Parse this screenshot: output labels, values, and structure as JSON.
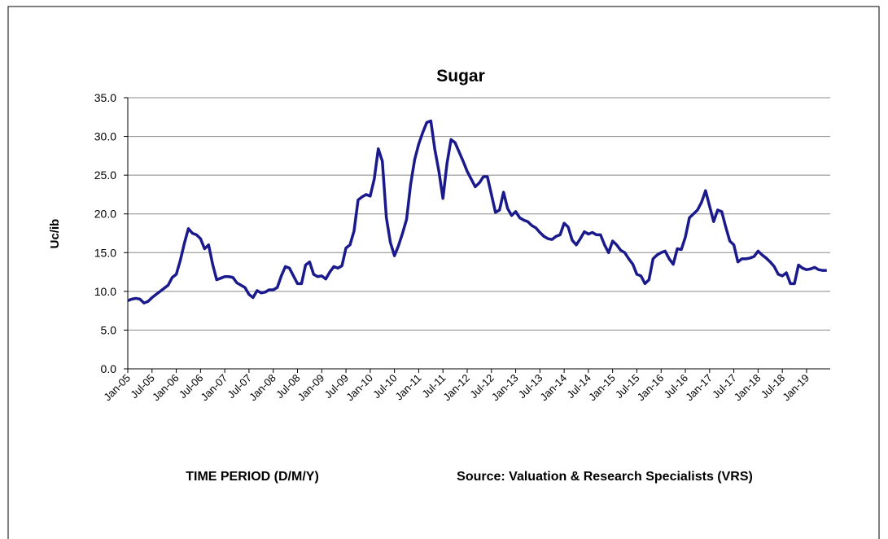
{
  "chart_data": {
    "type": "line",
    "title": "Sugar",
    "y_label": "Uc/ib",
    "x_label": "TIME PERIOD (D/M/Y)",
    "source": "Source: Valuation & Research Specialists (VRS)",
    "categories": [
      "Jan-05",
      null,
      null,
      null,
      null,
      null,
      "Jul-05",
      null,
      null,
      null,
      null,
      null,
      "Jan-06",
      null,
      null,
      null,
      null,
      null,
      "Jul-06",
      null,
      null,
      null,
      null,
      null,
      "Jan-07",
      null,
      null,
      null,
      null,
      null,
      "Jul-07",
      null,
      null,
      null,
      null,
      null,
      "Jan-08",
      null,
      null,
      null,
      null,
      null,
      "Jul-08",
      null,
      null,
      null,
      null,
      null,
      "Jan-09",
      null,
      null,
      null,
      null,
      null,
      "Jul-09",
      null,
      null,
      null,
      null,
      null,
      "Jan-10",
      null,
      null,
      null,
      null,
      null,
      "Jul-10",
      null,
      null,
      null,
      null,
      null,
      "Jan-11",
      null,
      null,
      null,
      null,
      null,
      "Jul-11",
      null,
      null,
      null,
      null,
      null,
      "Jan-12",
      null,
      null,
      null,
      null,
      null,
      "Jul-12",
      null,
      null,
      null,
      null,
      null,
      "Jan-13",
      null,
      null,
      null,
      null,
      null,
      "Jul-13",
      null,
      null,
      null,
      null,
      null,
      "Jan-14",
      null,
      null,
      null,
      null,
      null,
      "Jul-14",
      null,
      null,
      null,
      null,
      null,
      "Jan-15",
      null,
      null,
      null,
      null,
      null,
      "Jul-15",
      null,
      null,
      null,
      null,
      null,
      "Jan-16",
      null,
      null,
      null,
      null,
      null,
      "Jul-16",
      null,
      null,
      null,
      null,
      null,
      "Jan-17",
      null,
      null,
      null,
      null,
      null,
      "Jul-17",
      null,
      null,
      null,
      null,
      null,
      "Jan-18",
      null,
      null,
      null,
      null,
      null,
      "Jul-18",
      null,
      null,
      null,
      null,
      null,
      "Jan-19",
      null,
      null,
      null,
      null,
      null
    ],
    "series": [
      {
        "name": "Sugar",
        "color": "#1a1a8c",
        "values": [
          8.8,
          9.0,
          9.1,
          9.0,
          8.5,
          8.7,
          9.2,
          9.6,
          10.0,
          10.4,
          10.8,
          11.8,
          12.2,
          14.0,
          16.2,
          18.1,
          17.5,
          17.3,
          16.8,
          15.5,
          16.0,
          13.5,
          11.5,
          11.7,
          11.9,
          11.9,
          11.8,
          11.1,
          10.8,
          10.5,
          9.6,
          9.2,
          10.1,
          9.8,
          9.9,
          10.2,
          10.2,
          10.5,
          12.0,
          13.2,
          13.0,
          12.0,
          11.0,
          11.0,
          13.4,
          13.8,
          12.2,
          11.9,
          12.0,
          11.6,
          12.5,
          13.2,
          13.0,
          13.3,
          15.6,
          16.0,
          17.8,
          21.8,
          22.2,
          22.5,
          22.3,
          24.5,
          28.4,
          26.8,
          19.5,
          16.3,
          14.6,
          15.9,
          17.5,
          19.3,
          23.8,
          27.0,
          29.0,
          30.5,
          31.8,
          32.0,
          28.3,
          25.5,
          22.0,
          26.5,
          29.6,
          29.2,
          28.0,
          26.8,
          25.5,
          24.5,
          23.5,
          24.0,
          24.8,
          24.8,
          22.5,
          20.2,
          20.5,
          22.8,
          20.7,
          19.8,
          20.3,
          19.5,
          19.2,
          19.0,
          18.5,
          18.2,
          17.6,
          17.1,
          16.8,
          16.7,
          17.1,
          17.3,
          18.8,
          18.3,
          16.6,
          16.0,
          16.8,
          17.7,
          17.4,
          17.6,
          17.3,
          17.3,
          16.0,
          15.0,
          16.5,
          16.0,
          15.3,
          15.0,
          14.2,
          13.5,
          12.2,
          12.0,
          11.0,
          11.5,
          14.2,
          14.7,
          15.0,
          15.2,
          14.2,
          13.5,
          15.5,
          15.4,
          17.0,
          19.5,
          20.0,
          20.5,
          21.5,
          23.0,
          21.0,
          19.0,
          20.5,
          20.3,
          18.3,
          16.5,
          16.0,
          13.8,
          14.2,
          14.2,
          14.3,
          14.5,
          15.2,
          14.7,
          14.3,
          13.8,
          13.2,
          12.2,
          12.0,
          12.4,
          11.0,
          11.0,
          13.4,
          13.0,
          12.8,
          12.9,
          13.1,
          12.8,
          12.7,
          12.7
        ]
      }
    ],
    "ylim": [
      0,
      35
    ],
    "yticks": [
      {
        "value": 0,
        "label": "0.0"
      },
      {
        "value": 5,
        "label": "5.0"
      },
      {
        "value": 10,
        "label": "10.0"
      },
      {
        "value": 15,
        "label": "15.0"
      },
      {
        "value": 20,
        "label": "20.0"
      },
      {
        "value": 25,
        "label": "25.0"
      },
      {
        "value": 30,
        "label": "30.0"
      },
      {
        "value": 35,
        "label": "35.0"
      }
    ],
    "grid": true
  }
}
